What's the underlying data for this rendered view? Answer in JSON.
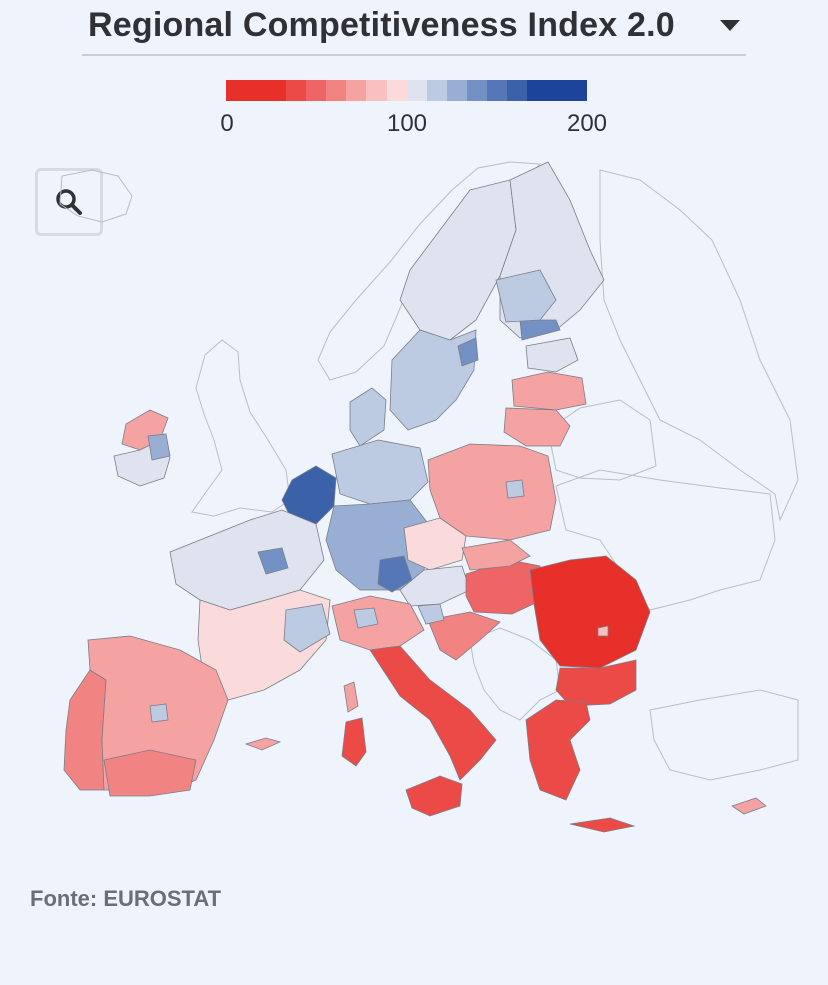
{
  "selector": {
    "label": "Regional Competitiveness Index 2.0"
  },
  "legend": {
    "ticks": [
      "0",
      "100",
      "200"
    ],
    "colors": [
      "#e8302b",
      "#e8302b",
      "#e8302b",
      "#ec4a47",
      "#ef6565",
      "#f28383",
      "#f5a2a2",
      "#f8c0c0",
      "#fadada",
      "#dfe3ef",
      "#bccbe2",
      "#98afd3",
      "#7391c4",
      "#5577b7",
      "#3b62a9",
      "#1b449a",
      "#1b449a",
      "#1b449a"
    ]
  },
  "zoom": {
    "icon": "search-icon"
  },
  "source": "Fonte: EUROSTAT",
  "map_palette": {
    "ocean": "#eff3fc",
    "nonEU_stroke": "#b9bdc6",
    "region_stroke": "#7a7e88",
    "very_low": "#e8302b",
    "low": "#ef6565",
    "below": "#f5a2a2",
    "slightly_below": "#fadada",
    "average": "#dfe3ef",
    "above": "#bccbe2",
    "high": "#7391c4",
    "very_high": "#3b62a9"
  }
}
